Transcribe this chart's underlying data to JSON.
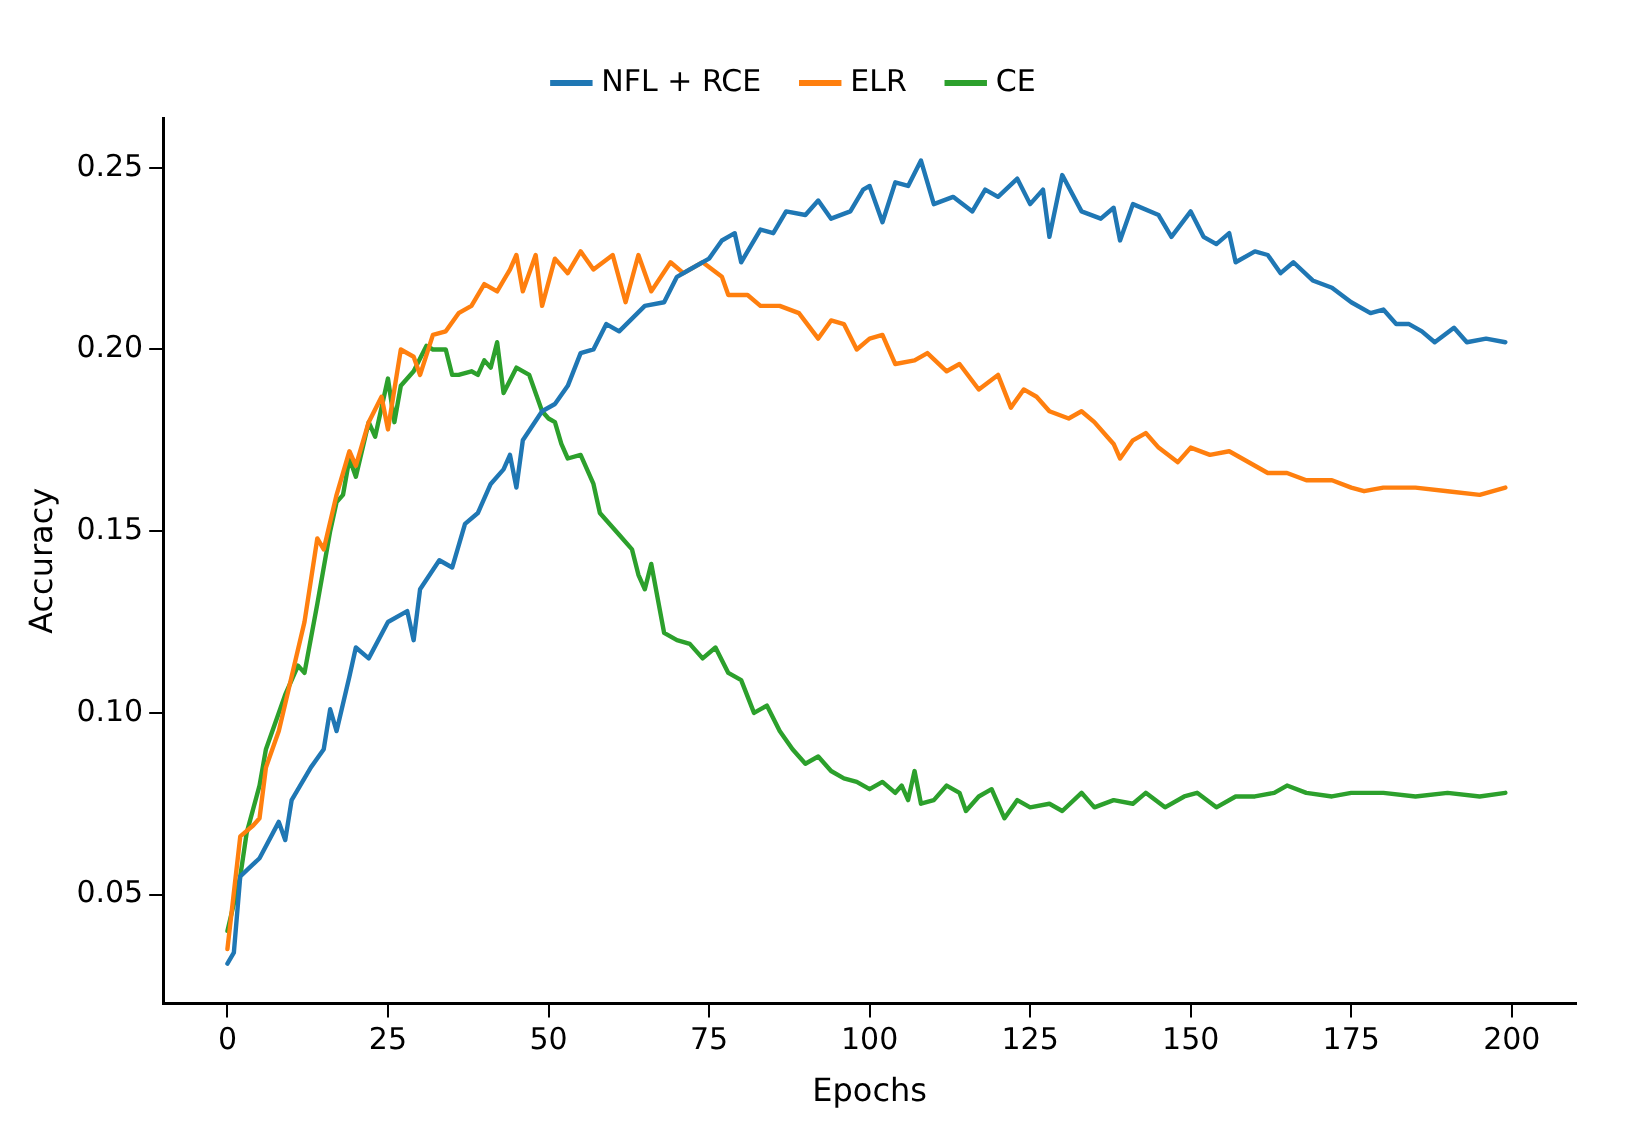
{
  "chart_data": {
    "type": "line",
    "xlabel": "Epochs",
    "ylabel": "Accuracy",
    "xlim": [
      -10,
      210
    ],
    "ylim": [
      0.02,
      0.2637
    ],
    "xticks": [
      0,
      25,
      50,
      75,
      100,
      125,
      150,
      175,
      200
    ],
    "yticks": [
      {
        "value": 0.05,
        "label": "0.05"
      },
      {
        "value": 0.1,
        "label": "0.10"
      },
      {
        "value": 0.15,
        "label": "0.15"
      },
      {
        "value": 0.2,
        "label": "0.20"
      },
      {
        "value": 0.25,
        "label": "0.25"
      }
    ],
    "grid": false,
    "legend": "top",
    "marker": "none",
    "line_style": "solid",
    "series": [
      {
        "name": "NFL + RCE",
        "color": "#1f77b4",
        "x": [
          0,
          1,
          2,
          5,
          8,
          9,
          10,
          13,
          15,
          16,
          17,
          19,
          20,
          22,
          25,
          28,
          29,
          30,
          33,
          35,
          37,
          39,
          41,
          43,
          44,
          45,
          46,
          49,
          51,
          53,
          55,
          57,
          59,
          61,
          65,
          68,
          70,
          72,
          75,
          77,
          79,
          80,
          83,
          85,
          87,
          90,
          92,
          94,
          97,
          99,
          100,
          102,
          104,
          106,
          108,
          110,
          113,
          116,
          118,
          120,
          123,
          125,
          127,
          128,
          130,
          133,
          136,
          138,
          139,
          141,
          145,
          147,
          150,
          152,
          154,
          156,
          157,
          160,
          162,
          164,
          166,
          169,
          172,
          175,
          178,
          180,
          182,
          184,
          186,
          188,
          191,
          193,
          196,
          199
        ],
        "values": [
          0.031,
          0.034,
          0.055,
          0.06,
          0.07,
          0.065,
          0.076,
          0.085,
          0.09,
          0.101,
          0.095,
          0.11,
          0.118,
          0.115,
          0.125,
          0.128,
          0.12,
          0.134,
          0.142,
          0.14,
          0.152,
          0.155,
          0.163,
          0.167,
          0.171,
          0.162,
          0.175,
          0.183,
          0.185,
          0.19,
          0.199,
          0.2,
          0.207,
          0.205,
          0.212,
          0.213,
          0.22,
          0.222,
          0.225,
          0.23,
          0.232,
          0.224,
          0.233,
          0.232,
          0.238,
          0.237,
          0.241,
          0.236,
          0.238,
          0.244,
          0.245,
          0.235,
          0.246,
          0.245,
          0.252,
          0.24,
          0.242,
          0.238,
          0.244,
          0.242,
          0.247,
          0.24,
          0.244,
          0.231,
          0.248,
          0.238,
          0.236,
          0.239,
          0.23,
          0.24,
          0.237,
          0.231,
          0.238,
          0.231,
          0.229,
          0.232,
          0.224,
          0.227,
          0.226,
          0.221,
          0.224,
          0.219,
          0.217,
          0.213,
          0.21,
          0.211,
          0.207,
          0.207,
          0.205,
          0.202,
          0.206,
          0.202,
          0.203,
          0.202
        ]
      },
      {
        "name": "ELR",
        "color": "#ff7f0e",
        "x": [
          0,
          2,
          4,
          5,
          6,
          8,
          10,
          12,
          14,
          15,
          17,
          19,
          20,
          22,
          24,
          25,
          27,
          29,
          30,
          32,
          34,
          36,
          38,
          40,
          42,
          44,
          45,
          46,
          48,
          49,
          51,
          53,
          55,
          57,
          60,
          62,
          64,
          66,
          69,
          71,
          74,
          77,
          78,
          81,
          83,
          86,
          89,
          92,
          94,
          96,
          98,
          100,
          102,
          104,
          107,
          109,
          112,
          114,
          117,
          120,
          122,
          124,
          126,
          128,
          131,
          133,
          135,
          137,
          138,
          139,
          141,
          143,
          145,
          148,
          150,
          153,
          156,
          160,
          162,
          165,
          168,
          172,
          175,
          177,
          180,
          185,
          190,
          195,
          199
        ],
        "values": [
          0.035,
          0.066,
          0.069,
          0.071,
          0.085,
          0.095,
          0.11,
          0.125,
          0.148,
          0.145,
          0.16,
          0.172,
          0.168,
          0.18,
          0.187,
          0.178,
          0.2,
          0.198,
          0.193,
          0.204,
          0.205,
          0.21,
          0.212,
          0.218,
          0.216,
          0.222,
          0.226,
          0.216,
          0.226,
          0.212,
          0.225,
          0.221,
          0.227,
          0.222,
          0.226,
          0.213,
          0.226,
          0.216,
          0.224,
          0.221,
          0.224,
          0.22,
          0.215,
          0.215,
          0.212,
          0.212,
          0.21,
          0.203,
          0.208,
          0.207,
          0.2,
          0.203,
          0.204,
          0.196,
          0.197,
          0.199,
          0.194,
          0.196,
          0.189,
          0.193,
          0.184,
          0.189,
          0.187,
          0.183,
          0.181,
          0.183,
          0.18,
          0.176,
          0.174,
          0.17,
          0.175,
          0.177,
          0.173,
          0.169,
          0.173,
          0.171,
          0.172,
          0.168,
          0.166,
          0.166,
          0.164,
          0.164,
          0.162,
          0.161,
          0.162,
          0.162,
          0.161,
          0.16,
          0.162
        ]
      },
      {
        "name": "CE",
        "color": "#2ca02c",
        "x": [
          0,
          2,
          3,
          5,
          6,
          9,
          11,
          12,
          14,
          16,
          17,
          18,
          19,
          20,
          22,
          23,
          25,
          26,
          27,
          29,
          31,
          32,
          34,
          35,
          36,
          38,
          39,
          40,
          41,
          42,
          43,
          45,
          47,
          49,
          50,
          51,
          52,
          53,
          55,
          57,
          58,
          61,
          63,
          64,
          65,
          66,
          68,
          70,
          72,
          74,
          76,
          78,
          80,
          82,
          84,
          86,
          88,
          90,
          92,
          94,
          96,
          98,
          100,
          102,
          104,
          105,
          106,
          107,
          108,
          110,
          112,
          114,
          115,
          117,
          119,
          121,
          123,
          125,
          128,
          130,
          133,
          135,
          138,
          141,
          143,
          146,
          149,
          151,
          154,
          157,
          160,
          163,
          165,
          168,
          172,
          175,
          180,
          185,
          190,
          195,
          199
        ],
        "values": [
          0.04,
          0.055,
          0.067,
          0.08,
          0.09,
          0.105,
          0.113,
          0.111,
          0.13,
          0.15,
          0.158,
          0.16,
          0.17,
          0.165,
          0.18,
          0.176,
          0.192,
          0.18,
          0.19,
          0.194,
          0.201,
          0.2,
          0.2,
          0.193,
          0.193,
          0.194,
          0.193,
          0.197,
          0.195,
          0.202,
          0.188,
          0.195,
          0.193,
          0.183,
          0.181,
          0.18,
          0.174,
          0.17,
          0.171,
          0.163,
          0.155,
          0.149,
          0.145,
          0.138,
          0.134,
          0.141,
          0.122,
          0.12,
          0.119,
          0.115,
          0.118,
          0.111,
          0.109,
          0.1,
          0.102,
          0.095,
          0.09,
          0.086,
          0.088,
          0.084,
          0.082,
          0.081,
          0.079,
          0.081,
          0.078,
          0.08,
          0.076,
          0.084,
          0.075,
          0.076,
          0.08,
          0.078,
          0.073,
          0.077,
          0.079,
          0.071,
          0.076,
          0.074,
          0.075,
          0.073,
          0.078,
          0.074,
          0.076,
          0.075,
          0.078,
          0.074,
          0.077,
          0.078,
          0.074,
          0.077,
          0.077,
          0.078,
          0.08,
          0.078,
          0.077,
          0.078,
          0.078,
          0.077,
          0.078,
          0.077,
          0.078
        ]
      }
    ]
  }
}
